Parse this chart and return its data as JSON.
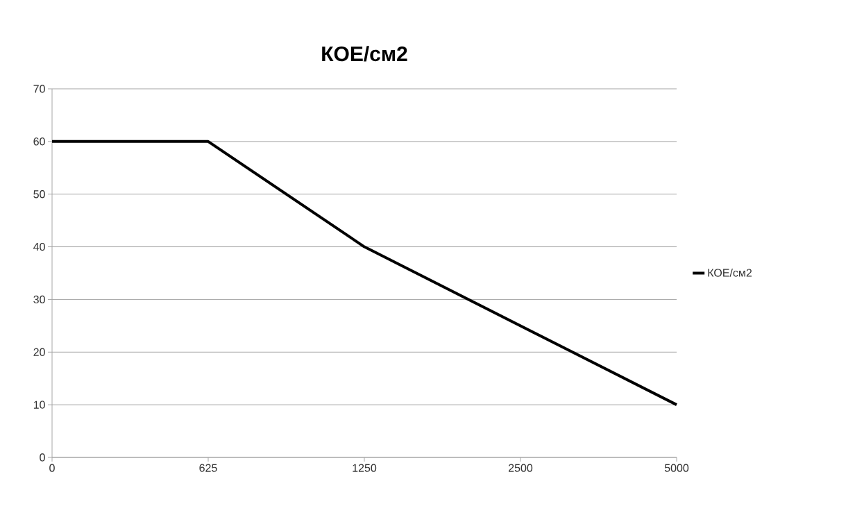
{
  "chart_data": {
    "type": "line",
    "title": "КОЕ/см2",
    "categories": [
      "0",
      "625",
      "1250",
      "2500",
      "5000"
    ],
    "series": [
      {
        "name": "КОЕ/см2",
        "color": "#000000",
        "values": [
          60,
          60,
          40,
          25,
          10
        ]
      }
    ],
    "ylim": [
      0,
      70
    ],
    "yticks": [
      0,
      10,
      20,
      30,
      40,
      50,
      60,
      70
    ],
    "grid": "y",
    "legend": "right",
    "marker": "none",
    "line_style": "solid"
  }
}
